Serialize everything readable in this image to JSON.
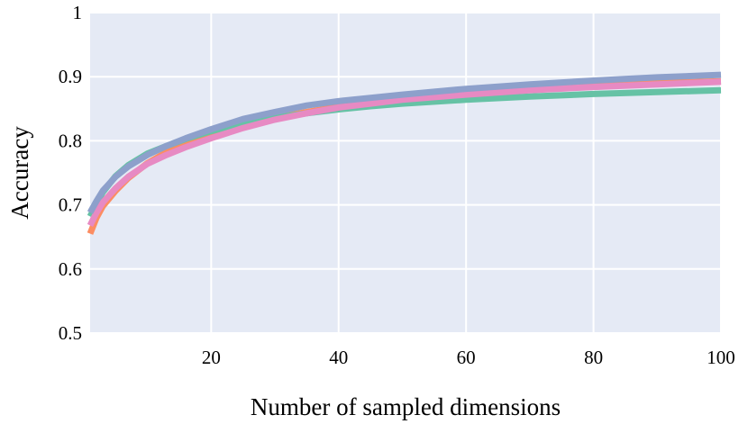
{
  "chart_data": {
    "type": "line",
    "title": "",
    "xlabel": "Number of sampled dimensions",
    "ylabel": "Accuracy",
    "xlim": [
      1,
      100
    ],
    "ylim": [
      0.5,
      1.0
    ],
    "x_ticks": [
      20,
      40,
      60,
      80,
      100
    ],
    "x_tick_labels": [
      "20",
      "40",
      "60",
      "80",
      "100"
    ],
    "y_ticks": [
      0.5,
      0.6,
      0.7,
      0.8,
      0.9,
      1.0
    ],
    "y_tick_labels": [
      "0.5",
      "0.6",
      "0.7",
      "0.8",
      "0.9",
      "1"
    ],
    "grid": true,
    "legend": "none",
    "background_color": "#e5eaf5",
    "series": [
      {
        "color": "#fc8d62",
        "x": [
          1,
          2,
          3,
          5,
          7,
          10,
          13,
          16,
          20,
          25,
          30,
          35,
          40,
          45,
          50,
          60,
          70,
          80,
          90,
          100
        ],
        "y": [
          0.655,
          0.68,
          0.698,
          0.722,
          0.742,
          0.765,
          0.782,
          0.795,
          0.81,
          0.825,
          0.836,
          0.845,
          0.853,
          0.86,
          0.865,
          0.874,
          0.881,
          0.886,
          0.89,
          0.893
        ]
      },
      {
        "color": "#66c2a5",
        "x": [
          1,
          2,
          3,
          5,
          7,
          10,
          13,
          16,
          20,
          25,
          30,
          35,
          40,
          45,
          50,
          60,
          70,
          80,
          90,
          100
        ],
        "y": [
          0.682,
          0.702,
          0.72,
          0.745,
          0.762,
          0.78,
          0.792,
          0.803,
          0.815,
          0.828,
          0.836,
          0.843,
          0.849,
          0.854,
          0.858,
          0.864,
          0.869,
          0.873,
          0.876,
          0.879
        ]
      },
      {
        "color": "#e78ac3",
        "x": [
          1,
          2,
          3,
          5,
          7,
          10,
          13,
          16,
          20,
          25,
          30,
          35,
          40,
          45,
          50,
          60,
          70,
          80,
          90,
          100
        ],
        "y": [
          0.668,
          0.688,
          0.704,
          0.726,
          0.744,
          0.764,
          0.778,
          0.79,
          0.804,
          0.82,
          0.833,
          0.843,
          0.852,
          0.858,
          0.864,
          0.872,
          0.879,
          0.884,
          0.888,
          0.892
        ]
      },
      {
        "color": "#8da0cb",
        "x": [
          1,
          2,
          3,
          5,
          7,
          10,
          13,
          16,
          20,
          25,
          30,
          35,
          40,
          45,
          50,
          60,
          70,
          80,
          90,
          100
        ],
        "y": [
          0.688,
          0.706,
          0.722,
          0.744,
          0.76,
          0.778,
          0.792,
          0.804,
          0.818,
          0.834,
          0.845,
          0.855,
          0.862,
          0.867,
          0.872,
          0.881,
          0.888,
          0.894,
          0.899,
          0.903
        ]
      }
    ]
  }
}
